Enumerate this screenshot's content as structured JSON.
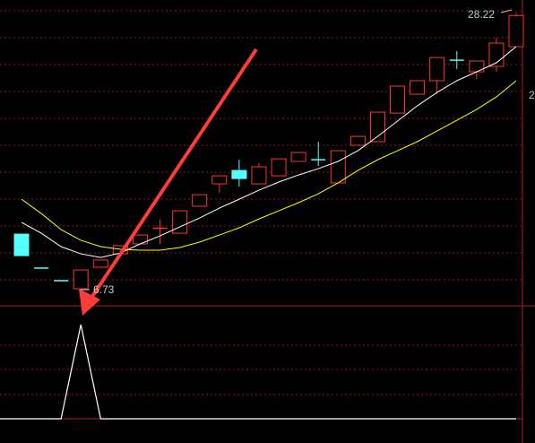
{
  "chart_data": {
    "type": "candlestick",
    "ylim": [
      5.55,
      29.2
    ],
    "up_color": "#ff3232",
    "down_color": "#54ffff",
    "open": [
      11.04,
      8.4,
      7.43,
      6.8,
      8.47,
      9.51,
      10.28,
      11.46,
      11.11,
      13.2,
      14.94,
      15.98,
      14.94,
      15.56,
      16.68,
      16.81,
      15.01,
      17.93,
      18.21,
      20.43,
      21.89,
      22.94,
      24.53,
      23.63,
      24.05,
      25.58
    ],
    "high": [
      11.04,
      8.4,
      7.43,
      8.26,
      9.03,
      10.14,
      10.97,
      12.15,
      12.85,
      14.1,
      15.56,
      16.81,
      16.54,
      16.88,
      17.37,
      18.21,
      17.51,
      18.62,
      20.5,
      22.52,
      22.94,
      24.74,
      25.23,
      24.47,
      26.27,
      28.22
    ],
    "low": [
      9.37,
      8.4,
      7.43,
      6.73,
      8.47,
      9.51,
      10.28,
      10.28,
      11.11,
      13.2,
      14.24,
      14.73,
      14.94,
      15.56,
      16.68,
      16.33,
      15.01,
      17.93,
      18.21,
      20.43,
      21.89,
      21.89,
      23.84,
      23.07,
      23.63,
      25.58
    ],
    "close": [
      9.37,
      8.4,
      7.43,
      8.26,
      9.03,
      10.14,
      10.97,
      11.5,
      12.85,
      14.1,
      15.56,
      15.35,
      16.26,
      16.88,
      17.37,
      16.81,
      17.51,
      18.62,
      20.5,
      22.52,
      22.94,
      24.74,
      24.53,
      24.47,
      25.86,
      28.0
    ],
    "ma_lines": [
      {
        "color": "#ffffff",
        "values": [
          11.95,
          11.11,
          10.07,
          9.51,
          9.23,
          9.58,
          10.28,
          10.9,
          11.6,
          12.29,
          13.06,
          13.75,
          14.45,
          15.08,
          15.63,
          16.12,
          16.68,
          17.51,
          18.62,
          19.81,
          20.99,
          22.03,
          22.94,
          23.63,
          24.33,
          25.58
        ]
      },
      {
        "color": "#ffff00",
        "values": [
          13.75,
          12.64,
          11.39,
          10.56,
          10.07,
          9.86,
          9.79,
          9.79,
          10.0,
          10.42,
          10.97,
          11.53,
          12.22,
          12.85,
          13.48,
          14.17,
          15.01,
          15.98,
          16.81,
          17.51,
          18.21,
          19.04,
          19.87,
          20.71,
          21.68,
          22.94
        ]
      }
    ],
    "annotations": {
      "high": "28.22",
      "low": "6.73",
      "edge": "2"
    },
    "indicator": {
      "color": "#ffffff",
      "ylim": [
        0,
        1
      ],
      "values": [
        0,
        0,
        0,
        1,
        0,
        0,
        0,
        0,
        0,
        0,
        0,
        0,
        0,
        0,
        0,
        0,
        0,
        0,
        0,
        0,
        0,
        0,
        0,
        0,
        0,
        0
      ]
    }
  }
}
